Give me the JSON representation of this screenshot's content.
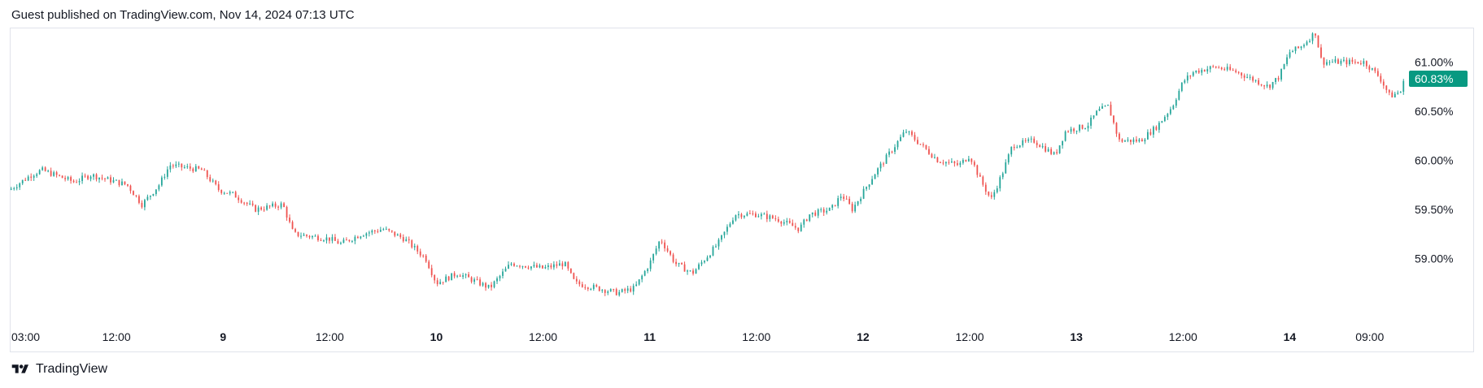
{
  "header": {
    "text": "Guest published on TradingView.com, Nov 14, 2024 07:13 UTC"
  },
  "footer": {
    "brand": "TradingView",
    "logo_icon": "tradingview-logo-icon"
  },
  "colors": {
    "up": "#26a69a",
    "down": "#ef5350",
    "badge": "#089981",
    "border": "#e0e3eb"
  },
  "chart_data": {
    "type": "candlestick",
    "y_axis": {
      "ticks": [
        59.0,
        59.5,
        60.0,
        60.5,
        61.0
      ],
      "tick_labels": [
        "59.00%",
        "59.50%",
        "60.00%",
        "60.50%",
        "61.00%"
      ],
      "range": [
        58.5,
        61.35
      ]
    },
    "x_axis": {
      "range": [
        0,
        6.54
      ],
      "ticks": [
        {
          "label": "03:00",
          "pos": 0.125,
          "bold": false
        },
        {
          "label": "12:00",
          "pos": 0.5,
          "bold": false
        },
        {
          "label": "9",
          "pos": 1.0,
          "bold": true
        },
        {
          "label": "12:00",
          "pos": 1.5,
          "bold": false
        },
        {
          "label": "10",
          "pos": 2.0,
          "bold": true
        },
        {
          "label": "12:00",
          "pos": 2.5,
          "bold": false
        },
        {
          "label": "11",
          "pos": 3.0,
          "bold": true
        },
        {
          "label": "12:00",
          "pos": 3.5,
          "bold": false
        },
        {
          "label": "12",
          "pos": 4.0,
          "bold": true
        },
        {
          "label": "12:00",
          "pos": 4.5,
          "bold": false
        },
        {
          "label": "13",
          "pos": 5.0,
          "bold": true
        },
        {
          "label": "12:00",
          "pos": 5.5,
          "bold": false
        },
        {
          "label": "14",
          "pos": 6.0,
          "bold": true
        },
        {
          "label": "09:00",
          "pos": 6.375,
          "bold": false
        }
      ]
    },
    "last_price": {
      "value": 60.83,
      "label": "60.83%"
    },
    "path": [
      [
        0,
        59.7
      ],
      [
        0.1,
        59.85
      ],
      [
        0.15,
        59.9
      ],
      [
        0.3,
        59.78
      ],
      [
        0.38,
        59.85
      ],
      [
        0.55,
        59.75
      ],
      [
        0.62,
        59.55
      ],
      [
        0.7,
        59.75
      ],
      [
        0.75,
        59.95
      ],
      [
        0.9,
        59.9
      ],
      [
        0.98,
        59.7
      ],
      [
        1.05,
        59.65
      ],
      [
        1.15,
        59.5
      ],
      [
        1.28,
        59.55
      ],
      [
        1.33,
        59.25
      ],
      [
        1.5,
        59.2
      ],
      [
        1.55,
        59.15
      ],
      [
        1.65,
        59.25
      ],
      [
        1.75,
        59.3
      ],
      [
        1.85,
        59.2
      ],
      [
        1.95,
        59.0
      ],
      [
        2.0,
        58.75
      ],
      [
        2.1,
        58.85
      ],
      [
        2.25,
        58.7
      ],
      [
        2.35,
        58.95
      ],
      [
        2.5,
        58.9
      ],
      [
        2.6,
        58.95
      ],
      [
        2.65,
        58.75
      ],
      [
        2.75,
        58.7
      ],
      [
        2.85,
        58.65
      ],
      [
        2.93,
        58.7
      ],
      [
        3.0,
        58.95
      ],
      [
        3.05,
        59.2
      ],
      [
        3.12,
        58.95
      ],
      [
        3.2,
        58.85
      ],
      [
        3.32,
        59.15
      ],
      [
        3.4,
        59.45
      ],
      [
        3.5,
        59.45
      ],
      [
        3.6,
        59.4
      ],
      [
        3.7,
        59.3
      ],
      [
        3.75,
        59.45
      ],
      [
        3.85,
        59.5
      ],
      [
        3.9,
        59.65
      ],
      [
        3.95,
        59.5
      ],
      [
        4.05,
        59.85
      ],
      [
        4.1,
        60.0
      ],
      [
        4.15,
        60.15
      ],
      [
        4.2,
        60.3
      ],
      [
        4.25,
        60.2
      ],
      [
        4.35,
        60.0
      ],
      [
        4.45,
        59.95
      ],
      [
        4.5,
        60.05
      ],
      [
        4.55,
        59.8
      ],
      [
        4.6,
        59.6
      ],
      [
        4.65,
        59.85
      ],
      [
        4.7,
        60.15
      ],
      [
        4.8,
        60.2
      ],
      [
        4.9,
        60.05
      ],
      [
        4.95,
        60.3
      ],
      [
        5.05,
        60.35
      ],
      [
        5.1,
        60.5
      ],
      [
        5.15,
        60.55
      ],
      [
        5.2,
        60.2
      ],
      [
        5.3,
        60.2
      ],
      [
        5.38,
        60.35
      ],
      [
        5.45,
        60.55
      ],
      [
        5.5,
        60.8
      ],
      [
        5.55,
        60.9
      ],
      [
        5.65,
        60.95
      ],
      [
        5.75,
        60.9
      ],
      [
        5.8,
        60.85
      ],
      [
        5.9,
        60.75
      ],
      [
        5.95,
        60.85
      ],
      [
        6.0,
        61.1
      ],
      [
        6.05,
        61.15
      ],
      [
        6.12,
        61.3
      ],
      [
        6.15,
        61.0
      ],
      [
        6.25,
        61.0
      ],
      [
        6.35,
        61.0
      ],
      [
        6.42,
        60.85
      ],
      [
        6.47,
        60.65
      ],
      [
        6.52,
        60.7
      ],
      [
        6.54,
        60.83
      ]
    ],
    "bars_per_unit": 75
  }
}
